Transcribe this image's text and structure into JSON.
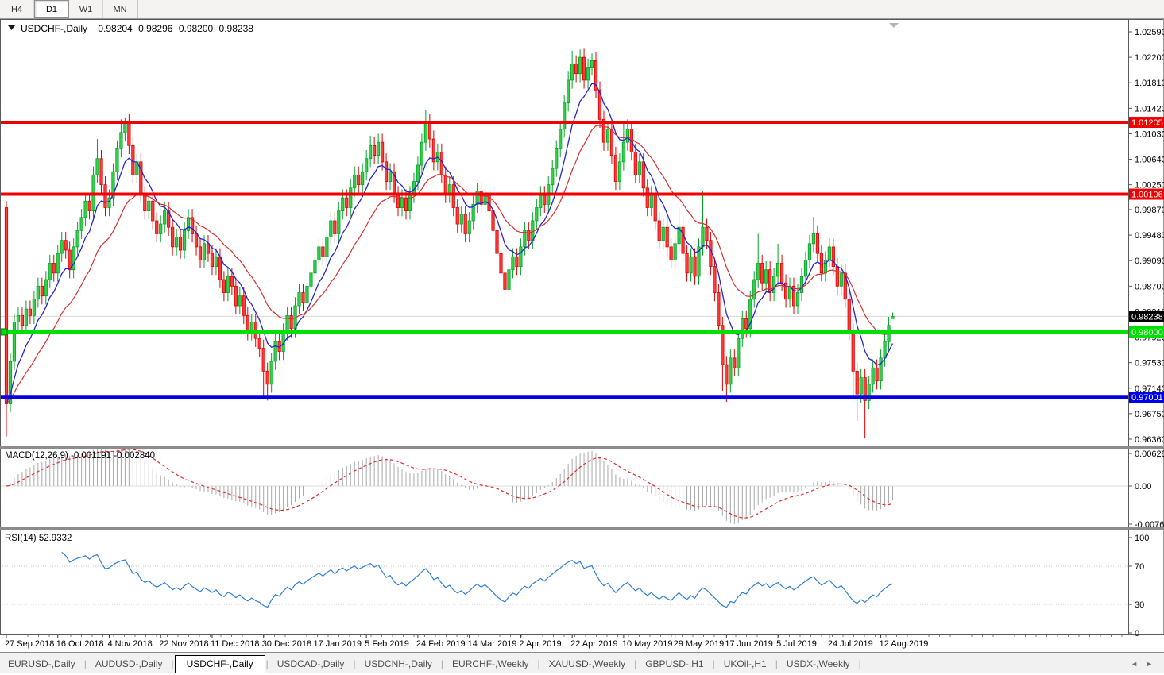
{
  "toolbar": {
    "buttons": [
      {
        "label": "H4",
        "active": false
      },
      {
        "label": "D1",
        "active": true
      },
      {
        "label": "W1",
        "active": false
      },
      {
        "label": "MN",
        "active": false
      }
    ]
  },
  "chart": {
    "title": {
      "symbol": "USDCHF-,Daily",
      "open": "0.98204",
      "high": "0.98296",
      "low": "0.98200",
      "close": "0.98238"
    },
    "price_axis": {
      "max": 1.0259,
      "min": 0.9636,
      "ticks": [
        "1.02590",
        "1.02200",
        "1.01810",
        "1.01420",
        "1.01030",
        "1.00640",
        "1.00250",
        "0.99870",
        "0.99480",
        "0.99090",
        "0.98700",
        "0.98310",
        "0.97920",
        "0.97530",
        "0.97140",
        "0.96750",
        "0.96360"
      ]
    },
    "hlines": [
      {
        "label": "1.01205",
        "price": 1.01205,
        "color": "#f00000",
        "thickness": 4
      },
      {
        "label": "1.00106",
        "price": 1.00106,
        "color": "#f00000",
        "thickness": 4
      },
      {
        "label": "0.98000",
        "price": 0.98,
        "color": "#00e000",
        "thickness": 5
      },
      {
        "label": "0.97001",
        "price": 0.97001,
        "color": "#0000e8",
        "thickness": 4
      }
    ],
    "current_price": {
      "label": "0.98238",
      "value": 0.98238
    },
    "candles": {
      "first_open": 0.999,
      "default_wick": 0.0013,
      "closes": [
        0.969,
        0.9755,
        0.9815,
        0.9825,
        0.981,
        0.9835,
        0.9825,
        0.985,
        0.987,
        0.9855,
        0.988,
        0.9905,
        0.989,
        0.992,
        0.994,
        0.9925,
        0.9895,
        0.993,
        0.9955,
        0.9975,
        1.0,
        0.9985,
        1.004,
        1.0065,
        1.0025,
        0.999,
        1.0005,
        1.0045,
        1.008,
        1.0105,
        1.012,
        1.0085,
        1.004,
        1.006,
        1.001,
        0.9985,
        1.0,
        0.997,
        0.995,
        0.9965,
        0.9985,
        0.996,
        0.993,
        0.9945,
        0.9925,
        0.9955,
        0.9975,
        0.995,
        0.993,
        0.991,
        0.9935,
        0.992,
        0.99,
        0.9915,
        0.988,
        0.986,
        0.9885,
        0.987,
        0.984,
        0.9855,
        0.9825,
        0.98,
        0.9815,
        0.979,
        0.9775,
        0.974,
        0.972,
        0.9755,
        0.9785,
        0.977,
        0.98,
        0.9825,
        0.9805,
        0.984,
        0.986,
        0.9845,
        0.987,
        0.989,
        0.991,
        0.993,
        0.9915,
        0.9945,
        0.997,
        0.995,
        0.9985,
        1.0005,
        0.999,
        1.002,
        1.004,
        1.0025,
        1.0045,
        1.0065,
        1.0085,
        1.007,
        1.009,
        1.006,
        1.003,
        1.0045,
        1.001,
        0.999,
        1.0005,
        0.9985,
        1.001,
        1.003,
        1.0055,
        1.009,
        1.012,
        1.0095,
        1.006,
        1.0075,
        1.004,
        1.001,
        1.0025,
        0.999,
        0.9965,
        0.998,
        0.995,
        0.997,
        0.9995,
        1.0015,
        0.9995,
        1.001,
        0.9985,
        0.9955,
        0.992,
        0.989,
        0.9865,
        0.9895,
        0.9915,
        0.99,
        0.993,
        0.9955,
        0.994,
        0.997,
        0.999,
        1.001,
        0.9995,
        1.0025,
        1.005,
        1.008,
        1.011,
        1.015,
        1.0185,
        1.021,
        1.0195,
        1.022,
        1.0185,
        1.0205,
        1.0215,
        1.017,
        1.0125,
        1.009,
        1.011,
        1.007,
        1.003,
        1.006,
        1.009,
        1.011,
        1.0075,
        1.004,
        1.006,
        1.002,
        0.999,
        1.001,
        0.997,
        0.994,
        0.996,
        0.993,
        0.991,
        0.9935,
        0.996,
        0.992,
        0.989,
        0.9915,
        0.9885,
        0.993,
        0.996,
        0.994,
        0.99,
        0.986,
        0.981,
        0.975,
        0.972,
        0.976,
        0.9745,
        0.979,
        0.982,
        0.9805,
        0.985,
        0.988,
        0.9905,
        0.9875,
        0.9895,
        0.986,
        0.9885,
        0.9905,
        0.9875,
        0.985,
        0.987,
        0.984,
        0.986,
        0.9885,
        0.991,
        0.9935,
        0.995,
        0.992,
        0.989,
        0.991,
        0.993,
        0.99,
        0.987,
        0.989,
        0.985,
        0.98,
        0.974,
        0.9705,
        0.973,
        0.9695,
        0.972,
        0.9745,
        0.9725,
        0.976,
        0.9785,
        0.981,
        0.98238
      ],
      "extremes": {
        "0": {
          "h": 1.0,
          "l": 0.964
        },
        "23": {
          "h": 1.0095
        },
        "29": {
          "h": 1.0125
        },
        "30": {
          "h": 1.0128
        },
        "65": {
          "l": 0.97
        },
        "66": {
          "l": 0.9695
        },
        "92": {
          "h": 1.01
        },
        "106": {
          "h": 1.014
        },
        "125": {
          "l": 0.9855
        },
        "126": {
          "l": 0.984
        },
        "143": {
          "h": 1.023
        },
        "145": {
          "h": 1.0232
        },
        "148": {
          "h": 1.0226
        },
        "156": {
          "h": 1.012
        },
        "157": {
          "h": 1.0125
        },
        "170": {
          "h": 0.999
        },
        "176": {
          "h": 1.0015
        },
        "181": {
          "l": 0.971
        },
        "182": {
          "l": 0.9693
        },
        "190": {
          "h": 0.995
        },
        "195": {
          "h": 0.9935
        },
        "204": {
          "h": 0.9976
        },
        "214": {
          "l": 0.97
        },
        "215": {
          "l": 0.9664
        },
        "217": {
          "l": 0.9637
        },
        "224": {
          "o": 0.98204,
          "h": 0.98296,
          "l": 0.982,
          "c": 0.98238
        }
      }
    }
  },
  "macd": {
    "label": "MACD(12,26,9) -0.001191 -0.002840",
    "params": [
      12,
      26,
      9
    ],
    "axis": [
      {
        "label": "0.006286",
        "value": 0.006286
      },
      {
        "label": "0.00",
        "value": 0.0
      },
      {
        "label": "-0.00762",
        "value": -0.00762
      }
    ]
  },
  "rsi": {
    "label": "RSI(14) 52.9332",
    "period": 14,
    "levels": [
      70,
      30
    ],
    "axis": [
      {
        "label": "100",
        "value": 100
      },
      {
        "label": "70",
        "value": 70
      },
      {
        "label": "30",
        "value": 30
      },
      {
        "label": "0",
        "value": 0
      }
    ]
  },
  "date_axis": {
    "labels": [
      "27 Sep 2018",
      "16 Oct 2018",
      "4 Nov 2018",
      "22 Nov 2018",
      "11 Dec 2018",
      "30 Dec 2018",
      "17 Jan 2019",
      "5 Feb 2019",
      "24 Feb 2019",
      "14 Mar 2019",
      "2 Apr 2019",
      "22 Apr 2019",
      "10 May 2019",
      "29 May 2019",
      "17 Jun 2019",
      "5 Jul 2019",
      "24 Jul 2019",
      "12 Aug 2019"
    ]
  },
  "tabs": {
    "items": [
      {
        "label": "EURUSD-,Daily",
        "active": false
      },
      {
        "label": "AUDUSD-,Daily",
        "active": false
      },
      {
        "label": "USDCHF-,Daily",
        "active": true
      },
      {
        "label": "USDCAD-,Daily",
        "active": false
      },
      {
        "label": "USDCNH-,Daily",
        "active": false
      },
      {
        "label": "EURCHF-,Weekly",
        "active": false
      },
      {
        "label": "XAUUSD-,Weekly",
        "active": false
      },
      {
        "label": "GBPUSD-,H1",
        "active": false
      },
      {
        "label": "UKOil-,H1",
        "active": false
      },
      {
        "label": "USDX-,Weekly",
        "active": false
      }
    ],
    "scroll_left": "◄",
    "scroll_right": "►"
  },
  "colors": {
    "bull_fill": "#35d04a",
    "bull_stroke": "#00a326",
    "bear_fill": "#ff3c3c",
    "bear_stroke": "#dd0000",
    "ma_fast": "#2424d4",
    "ma_slow": "#d43030",
    "macd_hist": "#a8a8a8",
    "macd_signal": "#dd2c2c",
    "rsi_line": "#2f7ed8",
    "grid_line": "#d8d8d8",
    "current_price_bg": "#000000"
  }
}
